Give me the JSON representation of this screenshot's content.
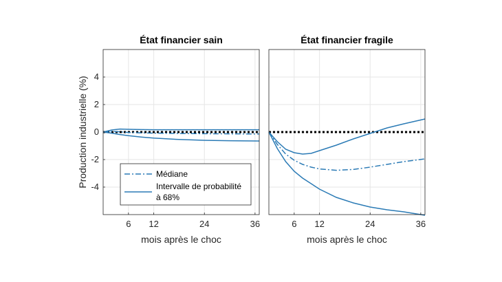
{
  "colors": {
    "series": "#2a7ab5",
    "zero_line": "#000000",
    "grid": "#e6e6e6",
    "axis": "#262626"
  },
  "ylabel": "Production industrielle (%)",
  "legend": {
    "median": "Médiane",
    "interval_line1": "Intervalle de probabilité",
    "interval_line2": "à 68%"
  },
  "chart_data": [
    {
      "type": "line",
      "title": "État financier sain",
      "xlabel": "mois après le choc",
      "ylabel": "Production industrielle (%)",
      "xlim": [
        0,
        37
      ],
      "ylim": [
        -6,
        6
      ],
      "xticks": [
        6,
        12,
        24,
        36
      ],
      "yticks": [
        -4,
        -2,
        0,
        2,
        4
      ],
      "grid": true,
      "legend_position": "bottom-left",
      "zero_line": 0,
      "series": [
        {
          "name": "Médiane",
          "style": "dashdot",
          "x": [
            0,
            2,
            4,
            6,
            9,
            12,
            18,
            24,
            30,
            37
          ],
          "y": [
            0,
            0.05,
            0.02,
            -0.03,
            -0.06,
            -0.08,
            -0.1,
            -0.12,
            -0.13,
            -0.14
          ]
        },
        {
          "name": "Intervalle de probabilité à 68%",
          "style": "solid",
          "x": [
            0,
            2,
            4,
            6,
            9,
            12,
            18,
            24,
            30,
            37
          ],
          "y": [
            0,
            0.15,
            0.22,
            0.2,
            0.18,
            0.17,
            0.17,
            0.17,
            0.17,
            0.17
          ]
        },
        {
          "name": "",
          "style": "solid",
          "x": [
            0,
            2,
            4,
            6,
            9,
            12,
            18,
            24,
            30,
            37
          ],
          "y": [
            0,
            -0.08,
            -0.18,
            -0.26,
            -0.36,
            -0.44,
            -0.54,
            -0.6,
            -0.63,
            -0.65
          ]
        }
      ]
    },
    {
      "type": "line",
      "title": "État financier fragile",
      "xlabel": "mois après le choc",
      "xlim": [
        0,
        37
      ],
      "ylim": [
        -6,
        6
      ],
      "xticks": [
        6,
        12,
        24,
        36
      ],
      "yticks": [
        -4,
        -2,
        0,
        2,
        4
      ],
      "grid": true,
      "zero_line": 0,
      "series": [
        {
          "name": "Médiane",
          "style": "dashdot",
          "x": [
            0,
            2,
            4,
            6,
            8,
            10,
            12,
            16,
            20,
            24,
            28,
            32,
            37
          ],
          "y": [
            0,
            -0.9,
            -1.6,
            -2.05,
            -2.35,
            -2.55,
            -2.68,
            -2.78,
            -2.72,
            -2.55,
            -2.35,
            -2.15,
            -1.95
          ]
        },
        {
          "name": "",
          "style": "solid",
          "x": [
            0,
            2,
            4,
            6,
            8,
            10,
            12,
            16,
            20,
            24,
            28,
            32,
            37
          ],
          "y": [
            0,
            -0.7,
            -1.25,
            -1.5,
            -1.6,
            -1.55,
            -1.35,
            -0.95,
            -0.5,
            -0.1,
            0.3,
            0.6,
            0.95
          ]
        },
        {
          "name": "",
          "style": "solid",
          "x": [
            0,
            2,
            4,
            6,
            8,
            10,
            12,
            16,
            20,
            24,
            28,
            32,
            37
          ],
          "y": [
            0,
            -1.2,
            -2.15,
            -2.85,
            -3.35,
            -3.75,
            -4.15,
            -4.75,
            -5.15,
            -5.45,
            -5.65,
            -5.8,
            -6.05
          ]
        }
      ]
    }
  ]
}
